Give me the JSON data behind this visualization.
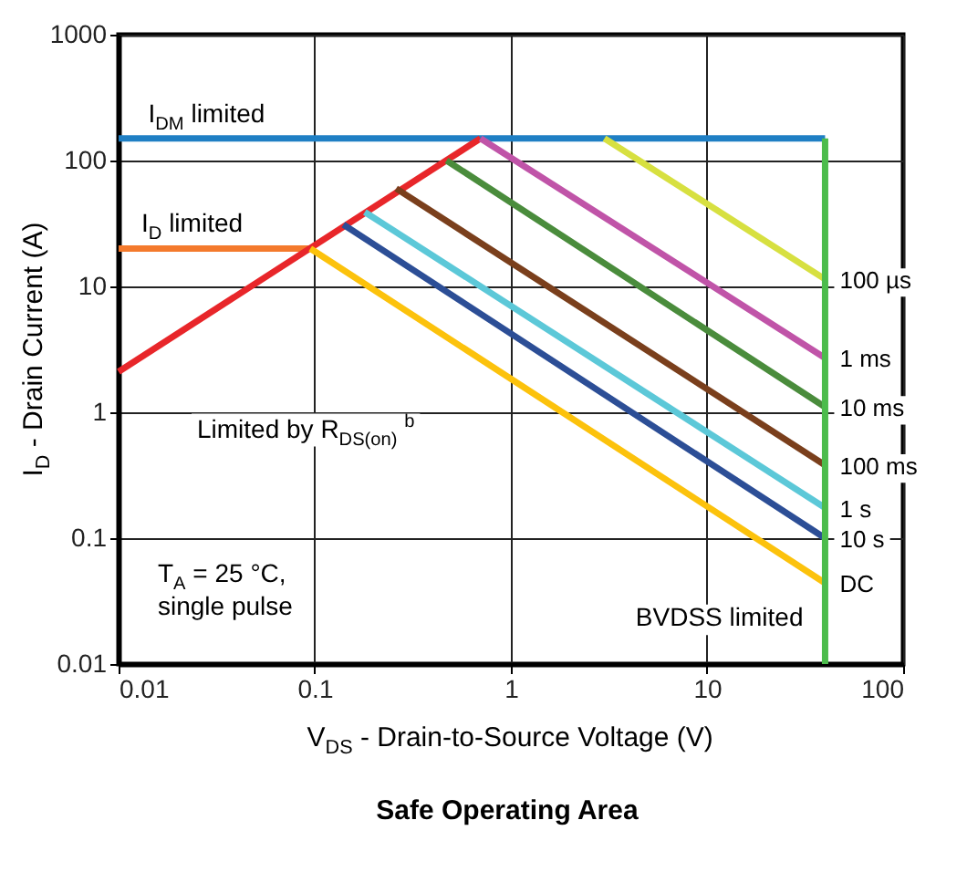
{
  "chart_data": {
    "type": "line",
    "title": "Safe Operating Area",
    "xlabel": "V$_{DS}$ - Drain-to-Source Voltage (V)",
    "ylabel": "I$_{D}$ - Drain Current (A)",
    "log": "xy",
    "xlim": [
      0.01,
      100
    ],
    "ylim": [
      0.01,
      1000
    ],
    "xticks": [
      0.01,
      0.1,
      1,
      10,
      100
    ],
    "yticks": [
      0.01,
      0.1,
      1,
      10,
      100,
      1000
    ],
    "grid": true,
    "marker": "none",
    "line_style": "solid",
    "series": [
      {
        "color": "#1f7fc4",
        "x": [
          0.01,
          40
        ],
        "values": [
          150,
          150
        ]
      },
      {
        "color": "#f47a2c",
        "x": [
          0.01,
          0.095
        ],
        "values": [
          20,
          20
        ]
      },
      {
        "color": "#e8262a",
        "x": [
          0.01,
          0.7
        ],
        "values": [
          2.1,
          150
        ]
      },
      {
        "name": "100 µs",
        "color": "#d7e040",
        "x": [
          3,
          40
        ],
        "values": [
          150,
          11.4
        ]
      },
      {
        "name": "1 ms",
        "color": "#c054a8",
        "x": [
          0.7,
          40
        ],
        "values": [
          150,
          2.7
        ]
      },
      {
        "name": "10 ms",
        "color": "#4a8c3c",
        "x": [
          0.47,
          40
        ],
        "values": [
          100,
          1.1
        ]
      },
      {
        "name": "100 ms",
        "color": "#7a3f1c",
        "x": [
          0.26,
          40
        ],
        "values": [
          60,
          0.38
        ]
      },
      {
        "name": "1 s",
        "color": "#5cc8d8",
        "x": [
          0.18,
          40
        ],
        "values": [
          39,
          0.174
        ]
      },
      {
        "name": "10 s",
        "color": "#2c4e96",
        "x": [
          0.14,
          40
        ],
        "values": [
          31,
          0.1
        ]
      },
      {
        "name": "DC",
        "color": "#fcc20c",
        "x": [
          0.095,
          40
        ],
        "values": [
          20,
          0.044
        ]
      },
      {
        "color": "#4cbc4c",
        "x": [
          40,
          40
        ],
        "values": [
          0.01,
          150
        ]
      }
    ],
    "annotations": [
      {
        "text": "I$_{DM}$ limited",
        "x": 0.013,
        "y": 150
      },
      {
        "text": "I$_{D}$ limited",
        "x": 0.012,
        "y": 20
      },
      {
        "text": "BVDSS limited",
        "x": 40,
        "y": 0.02
      },
      "Limited by R$_{DS(on)}$ $^{b}$",
      "T$_{A}$ = 25 °C,\nsingle pulse"
    ]
  }
}
